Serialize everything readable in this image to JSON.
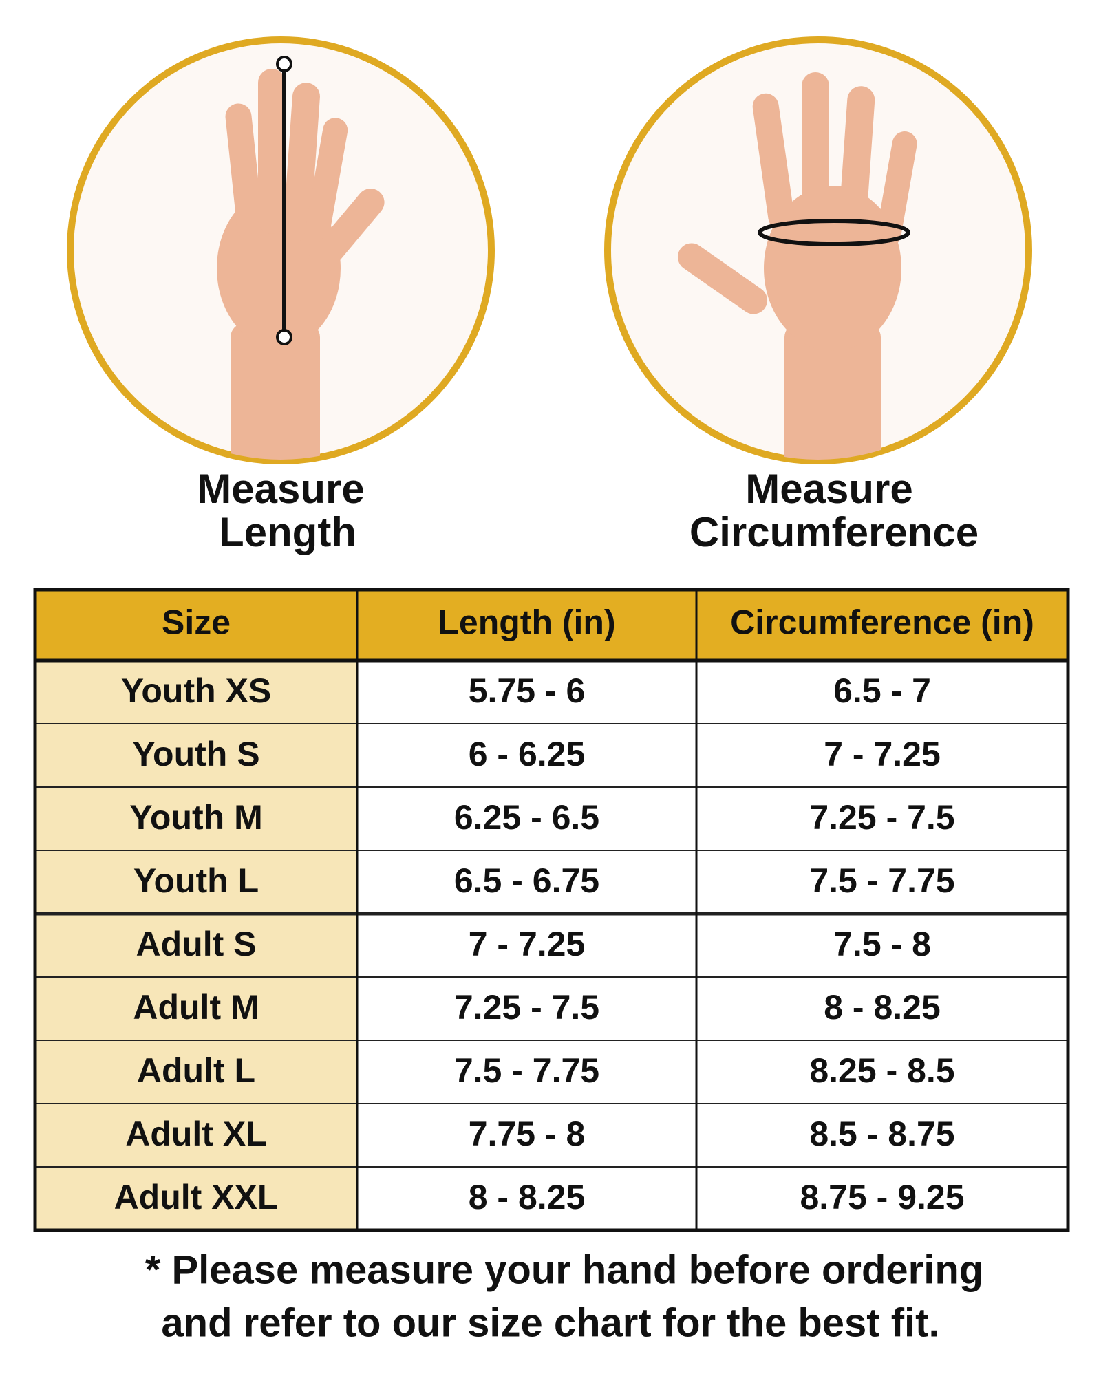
{
  "panels": [
    {
      "line1": "Measure",
      "line2": "Length"
    },
    {
      "line1": "Measure",
      "line2": "Circumference"
    }
  ],
  "table": {
    "header": [
      "Size",
      "Length (in)",
      "Circumference (in)"
    ],
    "rows": [
      [
        "Youth XS",
        "5.75 - 6",
        "6.5 - 7"
      ],
      [
        "Youth S",
        "6 - 6.25",
        "7 - 7.25"
      ],
      [
        "Youth M",
        "6.25 - 6.5",
        "7.25 - 7.5"
      ],
      [
        "Youth L",
        "6.5 - 6.75",
        "7.5 - 7.75"
      ],
      [
        "Adult S",
        "7 - 7.25",
        "7.5 - 8"
      ],
      [
        "Adult M",
        "7.25 - 7.5",
        "8 - 8.25"
      ],
      [
        "Adult L",
        "7.5 - 7.75",
        "8.25 - 8.5"
      ],
      [
        "Adult XL",
        "7.75 - 8",
        "8.5 - 8.75"
      ],
      [
        "Adult XXL",
        "8 - 8.25",
        "8.75 - 9.25"
      ]
    ]
  },
  "note": [
    "* Please measure your hand before ordering",
    "and refer to our size chart for the best fit."
  ]
}
